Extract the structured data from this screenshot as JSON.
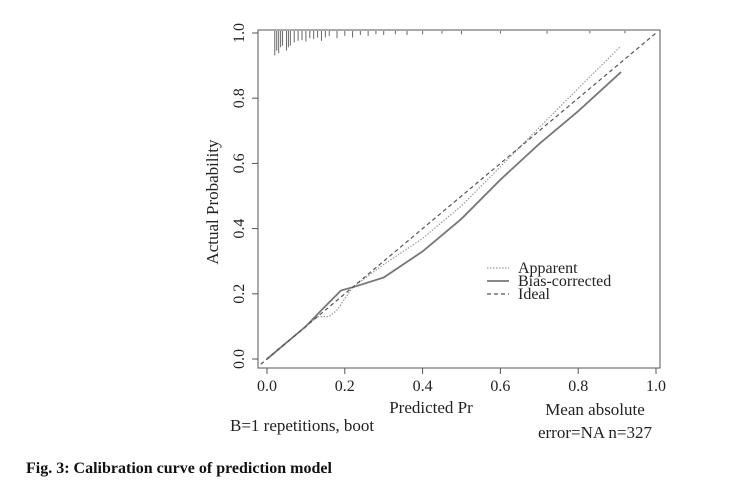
{
  "chart_data": {
    "type": "line",
    "xlabel": "Predicted Pr",
    "ylabel": "Actual Probability",
    "xlim": [
      0,
      1
    ],
    "ylim": [
      0,
      1
    ],
    "x_ticks": [
      "0.0",
      "0.2",
      "0.4",
      "0.6",
      "0.8",
      "1.0"
    ],
    "y_ticks": [
      "0.0",
      "0.2",
      "0.4",
      "0.6",
      "0.8",
      "1.0"
    ],
    "grid": false,
    "legend_position": "bottom-right",
    "series": [
      {
        "name": "Apparent",
        "style": "dotted",
        "color": "#9a9a9a",
        "x": [
          0.0,
          0.05,
          0.1,
          0.13,
          0.16,
          0.18,
          0.22,
          0.3,
          0.4,
          0.5,
          0.6,
          0.7,
          0.8,
          0.91
        ],
        "y": [
          0.0,
          0.05,
          0.1,
          0.13,
          0.13,
          0.15,
          0.22,
          0.29,
          0.37,
          0.47,
          0.59,
          0.71,
          0.83,
          0.96
        ]
      },
      {
        "name": "Bias-corrected",
        "style": "solid",
        "color": "#777777",
        "x": [
          0.0,
          0.05,
          0.1,
          0.14,
          0.19,
          0.22,
          0.3,
          0.4,
          0.5,
          0.6,
          0.7,
          0.8,
          0.91
        ],
        "y": [
          0.0,
          0.05,
          0.1,
          0.15,
          0.21,
          0.22,
          0.25,
          0.33,
          0.43,
          0.55,
          0.66,
          0.76,
          0.88
        ]
      },
      {
        "name": "Ideal",
        "style": "dashed",
        "color": "#555555",
        "x": [
          -0.03,
          1.0
        ],
        "y": [
          -0.03,
          1.0
        ]
      }
    ],
    "rug": {
      "x": [
        0.02,
        0.025,
        0.03,
        0.035,
        0.04,
        0.05,
        0.055,
        0.06,
        0.07,
        0.08,
        0.09,
        0.1,
        0.11,
        0.12,
        0.13,
        0.14,
        0.15,
        0.16,
        0.18,
        0.2,
        0.22,
        0.24,
        0.26,
        0.28,
        0.3,
        0.33,
        0.36,
        0.4,
        0.45,
        0.5,
        0.6,
        0.72,
        0.83,
        0.92
      ],
      "h": [
        0.075,
        0.06,
        0.068,
        0.05,
        0.045,
        0.06,
        0.05,
        0.045,
        0.035,
        0.03,
        0.028,
        0.032,
        0.022,
        0.025,
        0.02,
        0.03,
        0.02,
        0.015,
        0.022,
        0.015,
        0.02,
        0.012,
        0.015,
        0.01,
        0.012,
        0.01,
        0.012,
        0.01,
        0.008,
        0.01,
        0.008,
        0.008,
        0.007,
        0.007
      ]
    },
    "annotations": {
      "left": "B=1 repetitions, boot",
      "right_line1": "Mean absolute",
      "right_line2": "error=NA n=327"
    }
  },
  "caption": "Fig. 3: Calibration curve of prediction model"
}
